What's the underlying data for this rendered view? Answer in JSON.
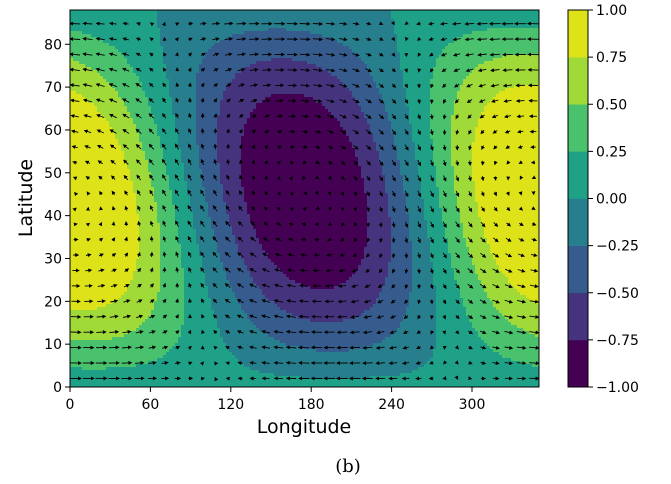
{
  "chart_data": {
    "type": "heatmap",
    "subtype": "filled-contour-with-vector-field",
    "xlabel": "Longitude",
    "ylabel": "Latitude",
    "xlim": [
      0,
      350
    ],
    "ylim": [
      0,
      88
    ],
    "xticks": [
      0,
      60,
      120,
      180,
      240,
      300
    ],
    "yticks": [
      0,
      10,
      20,
      30,
      40,
      50,
      60,
      70,
      80
    ],
    "colormap": "viridis",
    "colorbar": {
      "levels": [
        -1.0,
        -0.75,
        -0.5,
        -0.25,
        0.0,
        0.25,
        0.5,
        0.75,
        1.0
      ],
      "tick_labels": [
        "−1.00",
        "−0.75",
        "−0.50",
        "−0.25",
        "0.00",
        "0.25",
        "0.50",
        "0.75",
        "1.00"
      ],
      "colors": [
        "#440154",
        "#46337e",
        "#365c8d",
        "#277f8e",
        "#1fa187",
        "#4ac16d",
        "#a0da39",
        "#dde318"
      ]
    },
    "field": {
      "description_formula": "cos(2*lon) * sin(lat) * 1.15 with westward tilt",
      "maxima": [
        {
          "lon": 40,
          "lat": 48,
          "value": 0.9
        }
      ],
      "minima": [
        {
          "lon": 220,
          "lat": 48,
          "value": -0.9
        }
      ]
    },
    "grid": false,
    "legend": "colorbar-right"
  },
  "caption": "(b)"
}
